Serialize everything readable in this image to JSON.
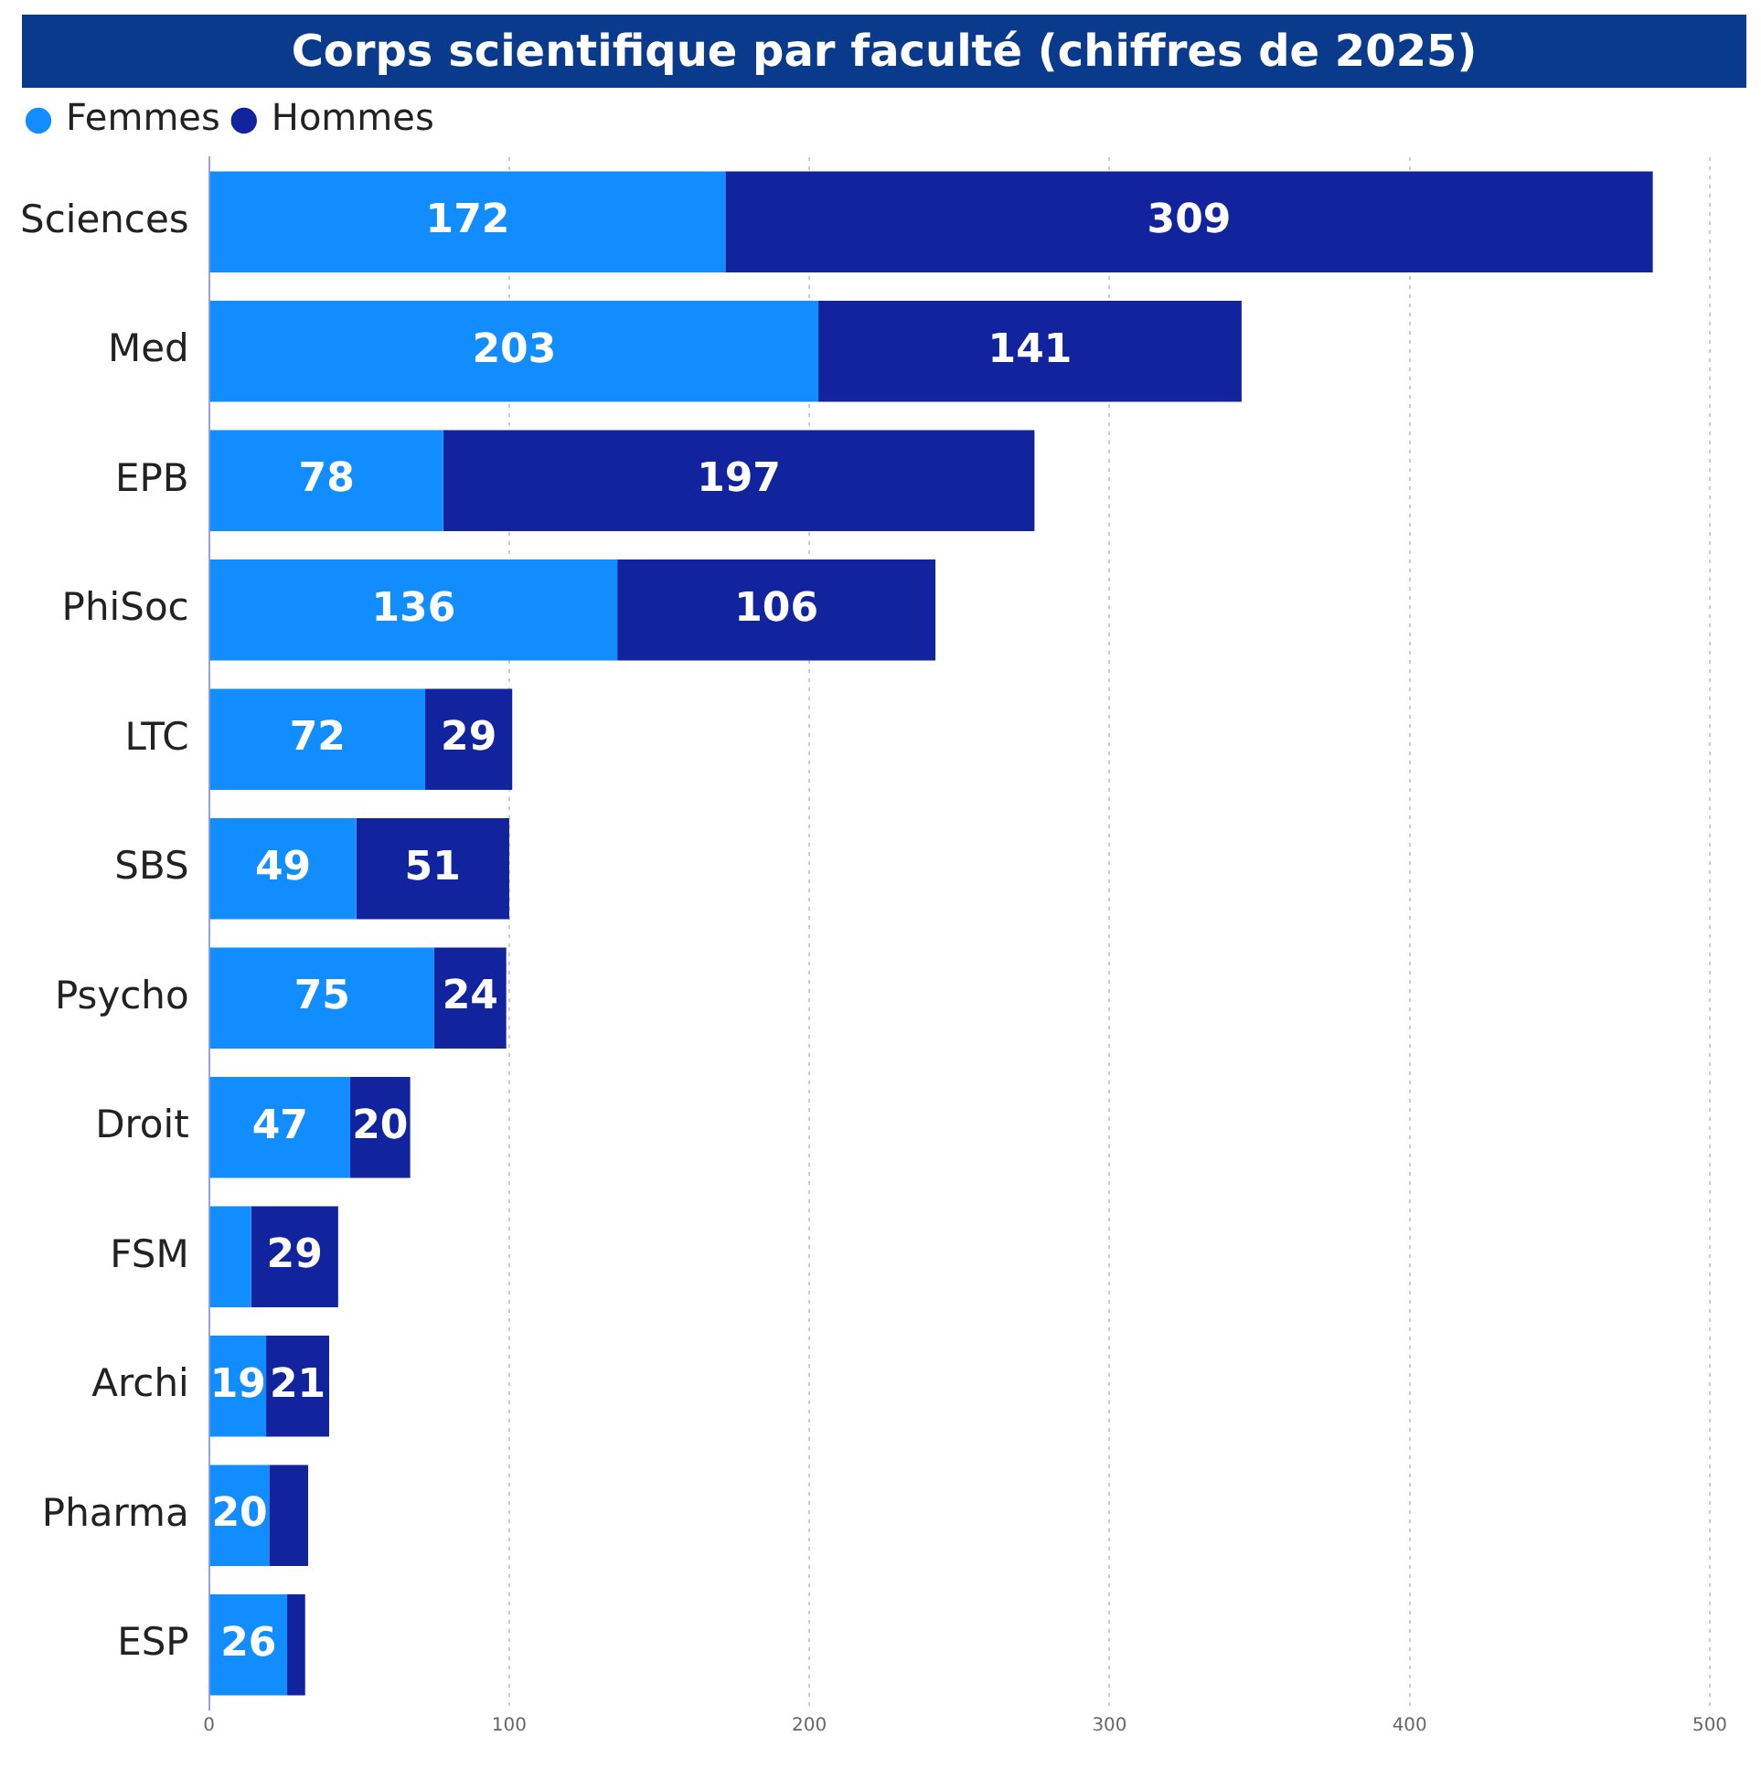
{
  "chart_data": {
    "type": "bar",
    "orientation": "horizontal",
    "stacked": true,
    "title": "Corps scientifique par faculté (chiffres de 2025)",
    "categories": [
      "Sciences",
      "Med",
      "EPB",
      "PhiSoc",
      "LTC",
      "SBS",
      "Psycho",
      "Droit",
      "FSM",
      "Archi",
      "Pharma",
      "ESP"
    ],
    "series": [
      {
        "name": "Femmes",
        "color": "#118dff",
        "values": [
          172,
          203,
          78,
          136,
          72,
          49,
          75,
          47,
          14,
          19,
          20,
          26
        ],
        "value_labels": [
          "172",
          "203",
          "78",
          "136",
          "72",
          "49",
          "75",
          "47",
          null,
          "19",
          "20",
          "26"
        ]
      },
      {
        "name": "Hommes",
        "color": "#12239e",
        "values": [
          309,
          141,
          197,
          106,
          29,
          51,
          24,
          20,
          29,
          21,
          13,
          6
        ],
        "value_labels": [
          "309",
          "141",
          "197",
          "106",
          "29",
          "51",
          "24",
          "20",
          "29",
          "21",
          null,
          null
        ]
      }
    ],
    "xlim": [
      0,
      500
    ],
    "xticks": [
      0,
      100,
      200,
      300,
      400,
      500
    ],
    "grid": "x",
    "legend": "top left"
  }
}
